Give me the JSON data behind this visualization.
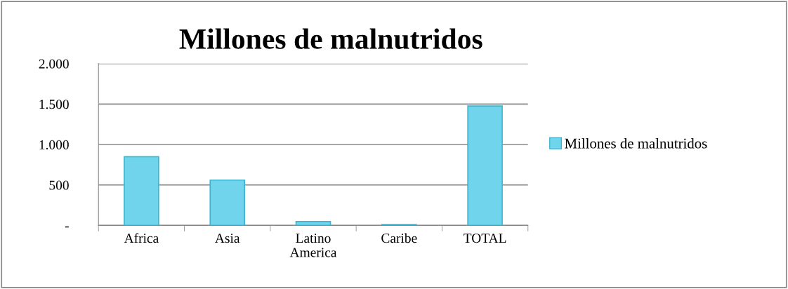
{
  "chart_data": {
    "type": "bar",
    "title": "Millones de malnutridos",
    "categories": [
      "Africa",
      "Asia",
      "Latino America",
      "Caribe",
      "TOTAL"
    ],
    "series": [
      {
        "name": "Millones de malnutridos",
        "color": "#6fd4ec",
        "values": [
          850,
          560,
          47,
          10,
          1475
        ]
      }
    ],
    "ylim": [
      0,
      2000
    ],
    "yticks": [
      {
        "value": 0,
        "label": "-"
      },
      {
        "value": 500,
        "label": "500"
      },
      {
        "value": 1000,
        "label": "1.000"
      },
      {
        "value": 1500,
        "label": "1.500"
      },
      {
        "value": 2000,
        "label": "2.000"
      }
    ],
    "grid": "y",
    "legend": "right"
  }
}
